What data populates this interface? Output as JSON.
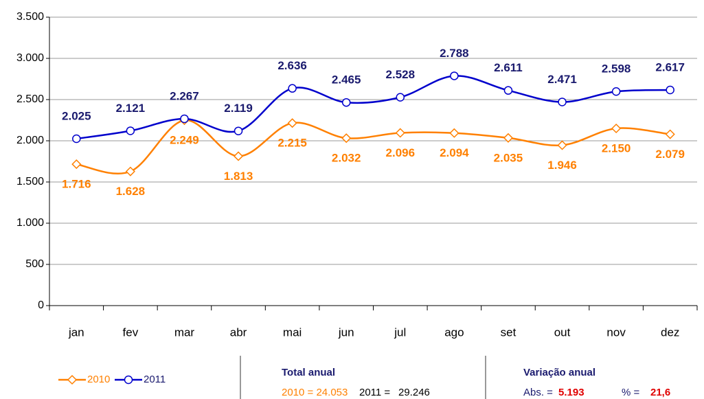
{
  "chart_data": {
    "type": "line",
    "categories": [
      "jan",
      "fev",
      "mar",
      "abr",
      "mai",
      "jun",
      "jul",
      "ago",
      "set",
      "out",
      "nov",
      "dez"
    ],
    "series": [
      {
        "name": "2010",
        "color": "#ff8000",
        "label_color": "#ff8000",
        "marker": "diamond",
        "values": [
          1716,
          1628,
          2249,
          1813,
          2215,
          2032,
          2096,
          2094,
          2035,
          1946,
          2150,
          2079
        ],
        "value_labels": [
          "1.716",
          "1.628",
          "2.249",
          "1.813",
          "2.215",
          "2.032",
          "2.096",
          "2.094",
          "2.035",
          "1.946",
          "2.150",
          "2.079"
        ]
      },
      {
        "name": "2011",
        "color": "#0000cc",
        "label_color": "#1a1a6e",
        "marker": "circle",
        "values": [
          2025,
          2121,
          2267,
          2119,
          2636,
          2465,
          2528,
          2788,
          2611,
          2471,
          2598,
          2617
        ],
        "value_labels": [
          "2.025",
          "2.121",
          "2.267",
          "2.119",
          "2.636",
          "2.465",
          "2.528",
          "2.788",
          "2.611",
          "2.471",
          "2.598",
          "2.617"
        ]
      }
    ],
    "ylim": [
      0,
      3500
    ],
    "yticks": [
      0,
      500,
      {
        "value": 1000,
        "label": "1.000"
      },
      {
        "value": 1500,
        "label": "1.500"
      },
      {
        "value": 2000,
        "label": "2.000"
      },
      {
        "value": 2500,
        "label": "2.500"
      },
      {
        "value": 3000,
        "label": "3.000"
      },
      {
        "value": 3500,
        "label": "3.500"
      }
    ],
    "grid": true,
    "summary": {
      "total_title": "Total anual",
      "total_2010": "2010 = 24.053",
      "total_2011_label": "2011 =",
      "total_2011_value": "29.246",
      "variation_title": "Variação anual",
      "abs_label": "Abs. =",
      "abs_value": "5.193",
      "pct_label": "% =",
      "pct_value": "21,6"
    }
  }
}
